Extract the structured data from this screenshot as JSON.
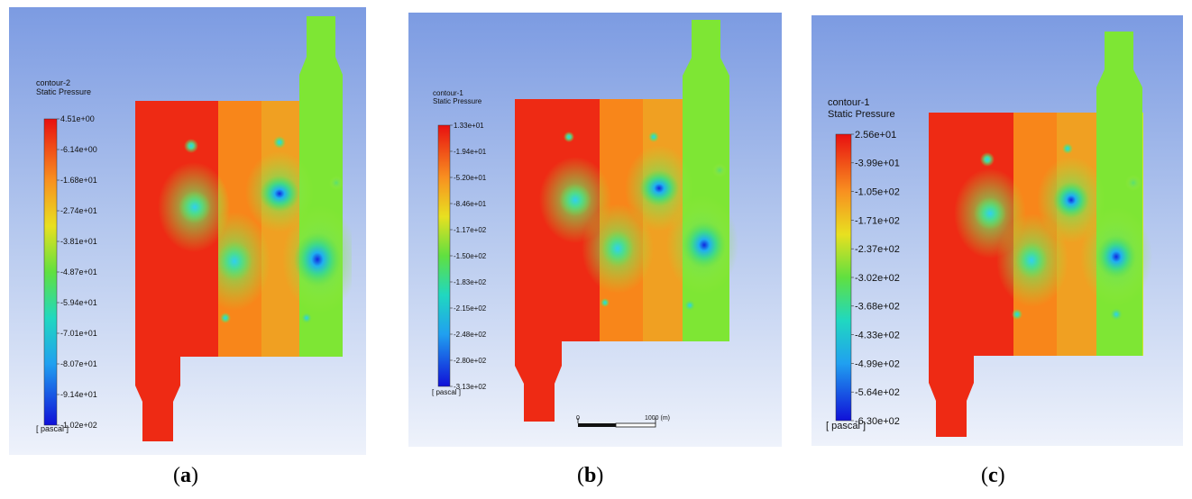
{
  "figure": {
    "panels": [
      {
        "id": "a",
        "label_open": "(",
        "label_letter": "a",
        "label_close": ")",
        "contour_name": "contour-2",
        "variable": "Static Pressure",
        "unit": "[ pascal ]",
        "ticks": [
          "4.51e+00",
          "-6.14e+00",
          "-1.68e+01",
          "-2.74e+01",
          "-3.81e+01",
          "-4.87e+01",
          "-5.94e+01",
          "-7.01e+01",
          "-8.07e+01",
          "-9.14e+01",
          "-1.02e+02"
        ]
      },
      {
        "id": "b",
        "label_open": "(",
        "label_letter": "b",
        "label_close": ")",
        "contour_name": "contour-1",
        "variable": "Static Pressure",
        "unit": "[ pascal ]",
        "ticks": [
          "1.33e+01",
          "-1.94e+01",
          "-5.20e+01",
          "-8.46e+01",
          "-1.17e+02",
          "-1.50e+02",
          "-1.83e+02",
          "-2.15e+02",
          "-2.48e+02",
          "-2.80e+02",
          "-3.13e+02"
        ],
        "scale_bar": {
          "start": "0",
          "end": "1000 (m)"
        }
      },
      {
        "id": "c",
        "label_open": "(",
        "label_letter": "c",
        "label_close": ")",
        "contour_name": "contour-1",
        "variable": "Static Pressure",
        "unit": "[ pascal ]",
        "ticks": [
          "2.56e+01",
          "-3.99e+01",
          "-1.05e+02",
          "-1.71e+02",
          "-2.37e+02",
          "-3.02e+02",
          "-3.68e+02",
          "-4.33e+02",
          "-4.99e+02",
          "-5.64e+02",
          "-6.30e+02"
        ]
      }
    ],
    "colors": {
      "furnace_red": "#ee2a14",
      "middle_orange": "#f8861a",
      "right_yellow": "#d6ee2a",
      "shaft_green": "#7ee634",
      "vortex_green": "#44d67a",
      "vortex_cyan": "#2fd2e8",
      "vortex_blue": "#1030e0"
    }
  }
}
